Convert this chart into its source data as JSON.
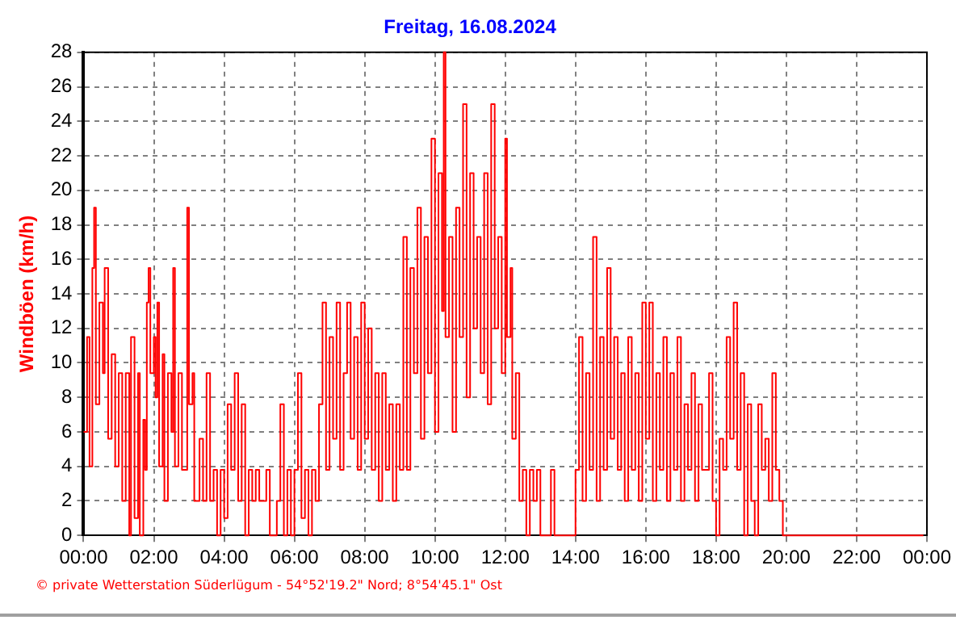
{
  "chart_data": {
    "type": "step",
    "title": "Freitag, 16.08.2024",
    "ylabel": "Windböen (km/h)",
    "annotations": [
      "© private Wetterstation Süderlügum - 54°52'19.2\" Nord; 8°54'45.1\" Ost"
    ],
    "xlim": [
      0,
      24
    ],
    "xticks": [
      {
        "value": 0,
        "label": "00:00"
      },
      {
        "value": 2,
        "label": "02:00"
      },
      {
        "value": 4,
        "label": "04:00"
      },
      {
        "value": 6,
        "label": "06:00"
      },
      {
        "value": 8,
        "label": "08:00"
      },
      {
        "value": 10,
        "label": "10:00"
      },
      {
        "value": 12,
        "label": "12:00"
      },
      {
        "value": 14,
        "label": "14:00"
      },
      {
        "value": 16,
        "label": "16:00"
      },
      {
        "value": 18,
        "label": "18:00"
      },
      {
        "value": 20,
        "label": "20:00"
      },
      {
        "value": 22,
        "label": "22:00"
      },
      {
        "value": 24,
        "label": "00:00"
      }
    ],
    "ylim": [
      0,
      28
    ],
    "yticks": [
      0,
      2,
      4,
      6,
      8,
      10,
      12,
      14,
      16,
      18,
      20,
      22,
      24,
      26,
      28
    ],
    "grid": true,
    "legend": false,
    "marker": "none",
    "line_style": "solid",
    "series": [
      {
        "color": "#ff0000",
        "x": [
          0,
          0.1,
          0.17,
          0.25,
          0.3,
          0.35,
          0.45,
          0.55,
          0.6,
          0.7,
          0.8,
          0.9,
          1,
          1.1,
          1.2,
          1.3,
          1.35,
          1.45,
          1.55,
          1.6,
          1.7,
          1.75,
          1.8,
          1.85,
          1.9,
          2,
          2.05,
          2.1,
          2.15,
          2.25,
          2.3,
          2.4,
          2.5,
          2.55,
          2.6,
          2.7,
          2.8,
          2.95,
          3,
          3.1,
          3.15,
          3.3,
          3.4,
          3.5,
          3.6,
          3.7,
          3.8,
          3.9,
          4,
          4.1,
          4.2,
          4.3,
          4.4,
          4.5,
          4.6,
          4.7,
          4.8,
          4.9,
          5,
          5.2,
          5.3,
          5.5,
          5.6,
          5.7,
          5.8,
          5.9,
          6,
          6.1,
          6.2,
          6.3,
          6.4,
          6.5,
          6.6,
          6.7,
          6.8,
          6.9,
          7,
          7.1,
          7.2,
          7.3,
          7.4,
          7.5,
          7.6,
          7.7,
          7.8,
          7.9,
          8,
          8.1,
          8.2,
          8.3,
          8.4,
          8.5,
          8.6,
          8.7,
          8.8,
          8.9,
          9,
          9.1,
          9.2,
          9.3,
          9.4,
          9.5,
          9.6,
          9.7,
          9.8,
          9.9,
          10,
          10.1,
          10.2,
          10.25,
          10.3,
          10.4,
          10.5,
          10.6,
          10.7,
          10.8,
          10.9,
          11,
          11.1,
          11.2,
          11.3,
          11.4,
          11.5,
          11.6,
          11.7,
          11.8,
          11.9,
          12,
          12.05,
          12.15,
          12.2,
          12.3,
          12.4,
          12.5,
          12.6,
          12.7,
          12.8,
          12.9,
          13,
          13.3,
          13.4,
          13.9,
          14,
          14.1,
          14.2,
          14.3,
          14.4,
          14.5,
          14.6,
          14.7,
          14.8,
          14.9,
          15,
          15.1,
          15.2,
          15.3,
          15.4,
          15.5,
          15.6,
          15.7,
          15.8,
          15.9,
          16,
          16.1,
          16.2,
          16.3,
          16.4,
          16.5,
          16.6,
          16.7,
          16.8,
          16.9,
          17,
          17.1,
          17.2,
          17.3,
          17.4,
          17.5,
          17.6,
          17.8,
          17.9,
          18,
          18.1,
          18.2,
          18.3,
          18.4,
          18.5,
          18.6,
          18.7,
          18.8,
          18.9,
          19,
          19.1,
          19.2,
          19.3,
          19.4,
          19.5,
          19.6,
          19.7,
          19.8,
          19.9,
          20,
          23.9
        ],
        "values": [
          6,
          11.5,
          4,
          15.5,
          19,
          7.6,
          13.5,
          9.4,
          15.5,
          5.6,
          10.5,
          4,
          9.4,
          2,
          9.4,
          0,
          11.5,
          1,
          9.4,
          0,
          6.7,
          3.8,
          13.5,
          15.5,
          9.4,
          11.5,
          8,
          13.5,
          4,
          10.5,
          2,
          9.4,
          6,
          15.5,
          4,
          9.4,
          3.8,
          19,
          7.6,
          9.4,
          2,
          5.6,
          2,
          9.4,
          2,
          3.8,
          0,
          3.8,
          1,
          7.6,
          3.8,
          9.4,
          2,
          7.6,
          0,
          3.8,
          2,
          3.8,
          2,
          3.8,
          0,
          2,
          7.6,
          0,
          3.8,
          0,
          3.8,
          9.4,
          1,
          3.8,
          0,
          3.8,
          2,
          7.6,
          13.5,
          3.8,
          11.5,
          5.6,
          13.5,
          3.8,
          9.4,
          13.5,
          5.6,
          11.5,
          3.8,
          13.5,
          5.6,
          12,
          3.8,
          9.4,
          2,
          9.4,
          3.8,
          7.6,
          2,
          7.6,
          3.8,
          17.3,
          3.8,
          15.5,
          9.4,
          19,
          5.6,
          17.3,
          9.4,
          23,
          6,
          21,
          13,
          28,
          11.5,
          17.3,
          6,
          19,
          11.5,
          25,
          8,
          21,
          12,
          17.3,
          9.4,
          21,
          7.6,
          25,
          12,
          17.3,
          9.4,
          23,
          11.5,
          15.5,
          5.6,
          9.4,
          2,
          3.8,
          0,
          3.8,
          2,
          3.8,
          0,
          3.8,
          0,
          0,
          3.8,
          11.5,
          2,
          9.4,
          3.8,
          17.3,
          2,
          11.5,
          3.8,
          15.5,
          5.6,
          11.5,
          3.8,
          9.4,
          2,
          11.5,
          3.8,
          9.4,
          2,
          13.5,
          5.6,
          13.5,
          2,
          9.4,
          3.8,
          11.5,
          2,
          9.4,
          3.8,
          11.5,
          2,
          7.6,
          3.8,
          9.4,
          2,
          7.6,
          3.8,
          9.4,
          2,
          0,
          5.6,
          3.8,
          11.5,
          5.6,
          13.5,
          3.8,
          9.4,
          0,
          7.6,
          2,
          0,
          7.6,
          3.8,
          5.6,
          2,
          9.4,
          3.8,
          2,
          0,
          0,
          0
        ]
      }
    ]
  }
}
